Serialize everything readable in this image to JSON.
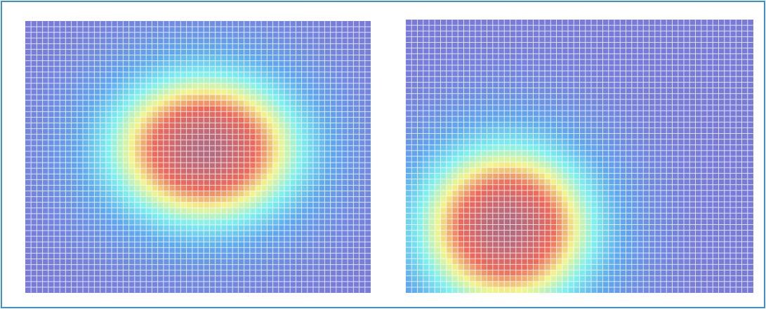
{
  "colors": {
    "frame_border": "#3d8fd0",
    "background": "#ffffff",
    "grid_lines": "#ffffff",
    "colormap": [
      "#7a7ad8",
      "#5fa8ef",
      "#7ff0f0",
      "#f2f58a",
      "#ef6a5a",
      "#b46a80"
    ]
  },
  "chart_data": [
    {
      "type": "heatmap",
      "title": "",
      "xlabel": "",
      "ylabel": "",
      "grid": true,
      "colormap": "jet",
      "grid_columns": 60,
      "grid_rows": 48,
      "hotspot": {
        "center_x": 0.52,
        "center_y": 0.47,
        "spread_x": 0.22,
        "spread_y": 0.22,
        "peak": 1.0
      }
    },
    {
      "type": "heatmap",
      "title": "",
      "xlabel": "",
      "ylabel": "",
      "grid": true,
      "colormap": "jet",
      "grid_columns": 60,
      "grid_rows": 48,
      "hotspot": {
        "center_x": 0.29,
        "center_y": 0.76,
        "spread_x": 0.2,
        "spread_y": 0.24,
        "peak": 1.0
      }
    }
  ]
}
